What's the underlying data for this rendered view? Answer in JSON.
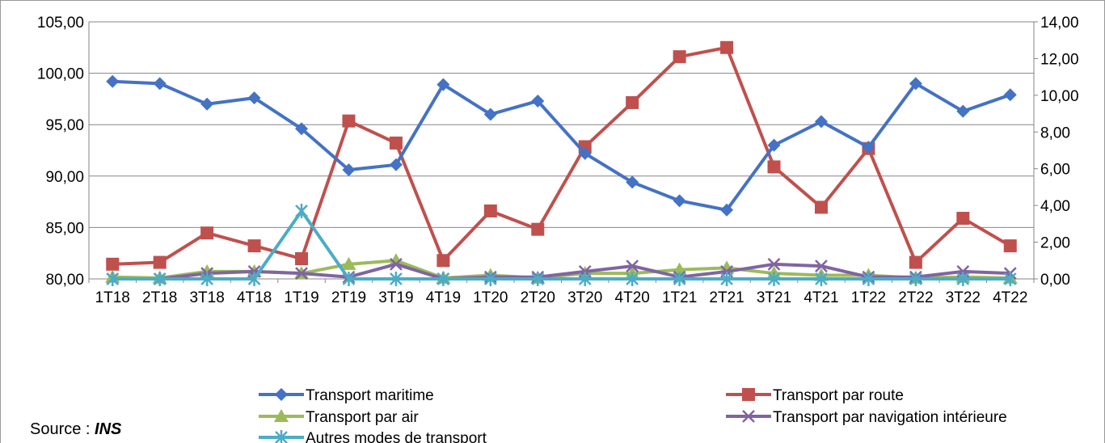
{
  "chart_data": {
    "type": "line",
    "title": "",
    "xlabel": "",
    "ylabel": "",
    "categories": [
      "1T18",
      "2T18",
      "3T18",
      "4T18",
      "1T19",
      "2T19",
      "3T19",
      "4T19",
      "1T20",
      "2T20",
      "3T20",
      "4T20",
      "1T21",
      "2T21",
      "3T21",
      "4T21",
      "1T22",
      "2T22",
      "3T22",
      "4T22"
    ],
    "ylim_left": [
      80,
      105
    ],
    "ylim_right": [
      0,
      14
    ],
    "yticks_left": [
      "80,00",
      "85,00",
      "90,00",
      "95,00",
      "100,00",
      "105,00"
    ],
    "yticks_right": [
      "0,00",
      "2,00",
      "4,00",
      "6,00",
      "8,00",
      "10,00",
      "12,00",
      "14,00"
    ],
    "grid": true,
    "legend_position": "bottom",
    "series": [
      {
        "name": "Transport maritime",
        "axis": "left",
        "color": "#4472C4",
        "marker": "diamond",
        "values": [
          99.2,
          99.0,
          97.0,
          97.6,
          94.6,
          90.6,
          91.1,
          98.9,
          96.0,
          97.3,
          92.2,
          89.4,
          87.6,
          86.7,
          93.0,
          95.3,
          92.8,
          99.0,
          96.3,
          97.9
        ]
      },
      {
        "name": "Transport par route",
        "axis": "right",
        "color": "#C0504D",
        "marker": "square",
        "values": [
          0.8,
          0.9,
          2.5,
          1.8,
          1.1,
          8.6,
          7.4,
          1.0,
          3.7,
          2.7,
          7.2,
          9.6,
          12.1,
          12.6,
          6.1,
          3.9,
          7.1,
          0.9,
          3.3,
          1.8
        ]
      },
      {
        "name": "Transport par air",
        "axis": "right",
        "color": "#9BBB59",
        "marker": "triangle",
        "values": [
          0.1,
          0.05,
          0.4,
          0.4,
          0.3,
          0.8,
          1.0,
          0.05,
          0.2,
          0.05,
          0.3,
          0.3,
          0.5,
          0.6,
          0.3,
          0.2,
          0.2,
          0.05,
          0.1,
          0.05
        ]
      },
      {
        "name": "Transport par navigation intérieure",
        "axis": "right",
        "color": "#8064A2",
        "marker": "x",
        "values": [
          0.0,
          0.0,
          0.3,
          0.4,
          0.3,
          0.1,
          0.8,
          0.0,
          0.1,
          0.1,
          0.4,
          0.7,
          0.1,
          0.4,
          0.8,
          0.7,
          0.1,
          0.1,
          0.4,
          0.3
        ]
      },
      {
        "name": "Autres modes de transport",
        "axis": "right",
        "color": "#4BACC6",
        "marker": "star",
        "values": [
          0.0,
          0.0,
          0.0,
          0.0,
          3.7,
          0.0,
          0.0,
          0.0,
          0.0,
          0.0,
          0.0,
          0.0,
          0.0,
          0.0,
          0.0,
          0.0,
          0.0,
          0.0,
          0.0,
          0.0
        ]
      }
    ]
  },
  "source": {
    "label": "Source : ",
    "name": "INS"
  }
}
